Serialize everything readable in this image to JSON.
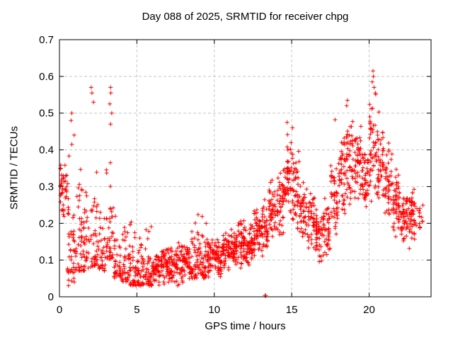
{
  "chart_data": {
    "type": "scatter",
    "title": "Day 088 of 2025, SRMTID for receiver chpg",
    "xlabel": "GPS time / hours",
    "ylabel": "SRMTID / TECUs",
    "xlim": [
      0,
      24
    ],
    "ylim": [
      0,
      0.7
    ],
    "xticks": [
      0,
      5,
      10,
      15,
      20
    ],
    "xticklabels": [
      "0",
      "5",
      "10",
      "15",
      "20"
    ],
    "yticks": [
      0,
      0.1,
      0.2,
      0.3,
      0.4,
      0.5,
      0.6,
      0.7
    ],
    "yticklabels": [
      "0",
      "0.1",
      "0.2",
      "0.3",
      "0.4",
      "0.5",
      "0.6",
      "0.7"
    ],
    "grid": true,
    "legend": "none",
    "marker": {
      "shape": "plus",
      "color": "#ff0000",
      "size": 7
    },
    "series_name": "SRMTID",
    "density_bins": {
      "description": "scatter bulk envelope per 0.5-hour bin: [hour_start, y_low, y_high, point_count, skew(-1 bottom-heavy, 0 centered)]",
      "bin_width_hours": 0.5,
      "bins": [
        [
          0.0,
          0.2,
          0.39,
          40,
          0
        ],
        [
          0.5,
          0.03,
          0.5,
          45,
          -1
        ],
        [
          1.0,
          0.07,
          0.45,
          40,
          -1
        ],
        [
          1.5,
          0.07,
          0.32,
          35,
          -1
        ],
        [
          2.0,
          0.08,
          0.38,
          40,
          -1
        ],
        [
          2.5,
          0.07,
          0.26,
          35,
          -1
        ],
        [
          3.0,
          0.1,
          0.47,
          40,
          -1
        ],
        [
          3.5,
          0.05,
          0.26,
          38,
          -1
        ],
        [
          4.0,
          0.04,
          0.22,
          38,
          -1
        ],
        [
          4.5,
          0.03,
          0.23,
          40,
          -1
        ],
        [
          5.0,
          0.03,
          0.17,
          42,
          -1
        ],
        [
          5.5,
          0.03,
          0.2,
          45,
          -1
        ],
        [
          6.0,
          0.03,
          0.13,
          45,
          0
        ],
        [
          6.5,
          0.03,
          0.15,
          45,
          0
        ],
        [
          7.0,
          0.03,
          0.14,
          45,
          0
        ],
        [
          7.5,
          0.03,
          0.16,
          45,
          0
        ],
        [
          8.0,
          0.04,
          0.15,
          45,
          0
        ],
        [
          8.5,
          0.05,
          0.26,
          45,
          -1
        ],
        [
          9.0,
          0.05,
          0.23,
          45,
          -1
        ],
        [
          9.5,
          0.04,
          0.16,
          45,
          0
        ],
        [
          10.0,
          0.05,
          0.16,
          50,
          0
        ],
        [
          10.5,
          0.06,
          0.18,
          50,
          0
        ],
        [
          11.0,
          0.07,
          0.19,
          50,
          0
        ],
        [
          11.5,
          0.07,
          0.22,
          50,
          0
        ],
        [
          12.0,
          0.08,
          0.21,
          50,
          0
        ],
        [
          12.5,
          0.09,
          0.26,
          50,
          0
        ],
        [
          13.0,
          0.11,
          0.29,
          45,
          0
        ],
        [
          13.5,
          0.14,
          0.33,
          45,
          0
        ],
        [
          14.0,
          0.15,
          0.36,
          45,
          0
        ],
        [
          14.5,
          0.2,
          0.46,
          48,
          0
        ],
        [
          15.0,
          0.17,
          0.43,
          45,
          0
        ],
        [
          15.5,
          0.14,
          0.33,
          40,
          0
        ],
        [
          16.0,
          0.12,
          0.3,
          42,
          0
        ],
        [
          16.5,
          0.09,
          0.26,
          42,
          0
        ],
        [
          17.0,
          0.1,
          0.28,
          42,
          0
        ],
        [
          17.5,
          0.14,
          0.39,
          42,
          0
        ],
        [
          18.0,
          0.19,
          0.45,
          45,
          0
        ],
        [
          18.5,
          0.24,
          0.51,
          48,
          0
        ],
        [
          19.0,
          0.24,
          0.48,
          45,
          0
        ],
        [
          19.5,
          0.21,
          0.43,
          45,
          0
        ],
        [
          20.0,
          0.24,
          0.58,
          48,
          0
        ],
        [
          20.5,
          0.24,
          0.51,
          45,
          0
        ],
        [
          21.0,
          0.19,
          0.43,
          45,
          0
        ],
        [
          21.5,
          0.15,
          0.36,
          48,
          0
        ],
        [
          22.0,
          0.12,
          0.31,
          48,
          0
        ],
        [
          22.5,
          0.12,
          0.3,
          45,
          0
        ],
        [
          23.0,
          0.17,
          0.27,
          16,
          0
        ]
      ]
    },
    "outlier_points": [
      [
        0.75,
        0.48
      ],
      [
        0.8,
        0.5
      ],
      [
        0.95,
        0.44
      ],
      [
        2.05,
        0.57
      ],
      [
        2.1,
        0.555
      ],
      [
        2.2,
        0.53
      ],
      [
        3.25,
        0.525
      ],
      [
        3.3,
        0.57
      ],
      [
        3.32,
        0.555
      ],
      [
        3.38,
        0.5
      ],
      [
        3.3,
        0.47
      ],
      [
        13.27,
        0.003
      ],
      [
        13.33,
        0.003
      ],
      [
        14.7,
        0.475
      ],
      [
        15.05,
        0.46
      ],
      [
        17.8,
        0.482
      ],
      [
        18.55,
        0.52
      ],
      [
        18.6,
        0.535
      ],
      [
        20.2,
        0.585
      ],
      [
        20.25,
        0.615
      ],
      [
        20.28,
        0.6
      ],
      [
        20.32,
        0.57
      ],
      [
        20.4,
        0.555
      ]
    ]
  },
  "colors": {
    "marker": "#ff0000",
    "grid": "#c5c5c5",
    "axis": "#000000",
    "background": "#ffffff"
  }
}
